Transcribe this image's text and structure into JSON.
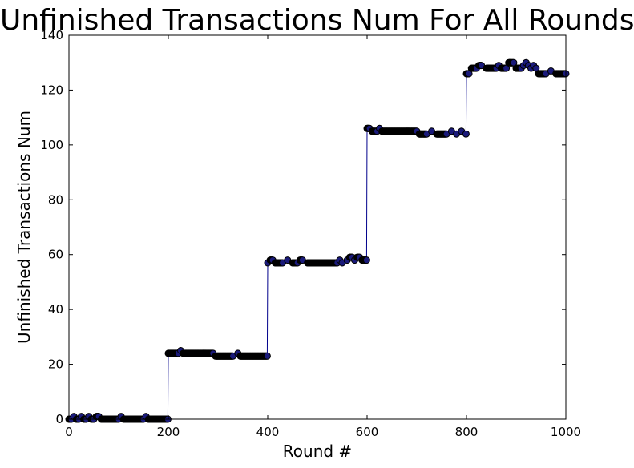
{
  "chart_data": {
    "type": "line",
    "title": "Unfinished Transactions Num For All Rounds",
    "xlabel": "Round #",
    "ylabel": "Unfinished Transactions Num",
    "xlim": [
      0,
      1000
    ],
    "ylim": [
      0,
      140
    ],
    "x_ticks": [
      "0",
      "200",
      "400",
      "600",
      "800",
      "1000"
    ],
    "y_ticks": [
      "0",
      "20",
      "40",
      "60",
      "80",
      "100",
      "120",
      "140"
    ],
    "grid": false,
    "legend": "none",
    "series": [
      {
        "line_color": "#00008b",
        "marker_face_color": "#1a1a7a",
        "marker_edge_color": "#000000",
        "points": [
          [
            0,
            0
          ],
          [
            5,
            0
          ],
          [
            10,
            1
          ],
          [
            15,
            0
          ],
          [
            20,
            0
          ],
          [
            25,
            1
          ],
          [
            30,
            0
          ],
          [
            35,
            0
          ],
          [
            40,
            1
          ],
          [
            45,
            0
          ],
          [
            50,
            0
          ],
          [
            55,
            1
          ],
          [
            60,
            1
          ],
          [
            65,
            0
          ],
          [
            70,
            0
          ],
          [
            80,
            0
          ],
          [
            90,
            0
          ],
          [
            100,
            0
          ],
          [
            105,
            1
          ],
          [
            110,
            0
          ],
          [
            120,
            0
          ],
          [
            130,
            0
          ],
          [
            140,
            0
          ],
          [
            150,
            0
          ],
          [
            155,
            1
          ],
          [
            160,
            0
          ],
          [
            170,
            0
          ],
          [
            180,
            0
          ],
          [
            190,
            0
          ],
          [
            199,
            0
          ],
          [
            200,
            24
          ],
          [
            210,
            24
          ],
          [
            220,
            24
          ],
          [
            225,
            25
          ],
          [
            230,
            24
          ],
          [
            240,
            24
          ],
          [
            250,
            24
          ],
          [
            260,
            24
          ],
          [
            270,
            24
          ],
          [
            280,
            24
          ],
          [
            290,
            24
          ],
          [
            295,
            23
          ],
          [
            300,
            23
          ],
          [
            310,
            23
          ],
          [
            320,
            23
          ],
          [
            330,
            23
          ],
          [
            340,
            24
          ],
          [
            345,
            23
          ],
          [
            350,
            23
          ],
          [
            360,
            23
          ],
          [
            370,
            23
          ],
          [
            380,
            23
          ],
          [
            390,
            23
          ],
          [
            399,
            23
          ],
          [
            400,
            57
          ],
          [
            405,
            58
          ],
          [
            410,
            58
          ],
          [
            415,
            57
          ],
          [
            420,
            57
          ],
          [
            430,
            57
          ],
          [
            440,
            58
          ],
          [
            450,
            57
          ],
          [
            460,
            57
          ],
          [
            465,
            58
          ],
          [
            470,
            58
          ],
          [
            480,
            57
          ],
          [
            490,
            57
          ],
          [
            500,
            57
          ],
          [
            510,
            57
          ],
          [
            520,
            57
          ],
          [
            530,
            57
          ],
          [
            540,
            57
          ],
          [
            545,
            58
          ],
          [
            550,
            57
          ],
          [
            560,
            58
          ],
          [
            565,
            59
          ],
          [
            570,
            59
          ],
          [
            575,
            58
          ],
          [
            580,
            59
          ],
          [
            585,
            59
          ],
          [
            590,
            58
          ],
          [
            599,
            58
          ],
          [
            600,
            106
          ],
          [
            605,
            106
          ],
          [
            610,
            105
          ],
          [
            620,
            105
          ],
          [
            625,
            106
          ],
          [
            630,
            105
          ],
          [
            640,
            105
          ],
          [
            650,
            105
          ],
          [
            660,
            105
          ],
          [
            670,
            105
          ],
          [
            680,
            105
          ],
          [
            690,
            105
          ],
          [
            700,
            105
          ],
          [
            705,
            104
          ],
          [
            710,
            104
          ],
          [
            720,
            104
          ],
          [
            730,
            105
          ],
          [
            740,
            104
          ],
          [
            750,
            104
          ],
          [
            760,
            104
          ],
          [
            770,
            105
          ],
          [
            780,
            104
          ],
          [
            790,
            105
          ],
          [
            799,
            104
          ],
          [
            800,
            126
          ],
          [
            805,
            126
          ],
          [
            810,
            128
          ],
          [
            820,
            128
          ],
          [
            825,
            129
          ],
          [
            830,
            129
          ],
          [
            840,
            128
          ],
          [
            850,
            128
          ],
          [
            860,
            128
          ],
          [
            865,
            129
          ],
          [
            870,
            128
          ],
          [
            880,
            128
          ],
          [
            885,
            130
          ],
          [
            890,
            130
          ],
          [
            895,
            130
          ],
          [
            900,
            128
          ],
          [
            910,
            128
          ],
          [
            915,
            129
          ],
          [
            920,
            130
          ],
          [
            925,
            129
          ],
          [
            930,
            128
          ],
          [
            935,
            129
          ],
          [
            940,
            128
          ],
          [
            945,
            126
          ],
          [
            950,
            126
          ],
          [
            960,
            126
          ],
          [
            970,
            127
          ],
          [
            980,
            126
          ],
          [
            990,
            126
          ],
          [
            1000,
            126
          ]
        ]
      }
    ]
  }
}
